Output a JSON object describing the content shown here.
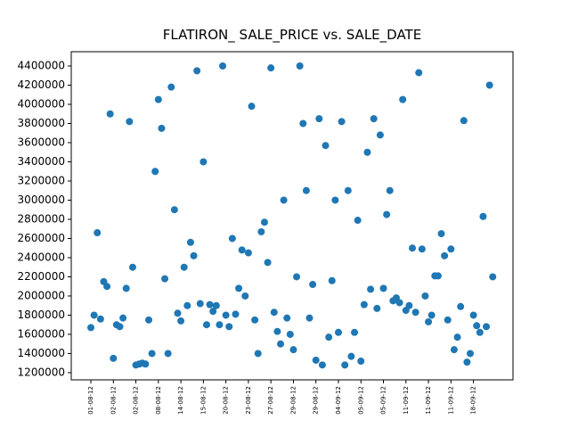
{
  "chart_data": {
    "type": "scatter",
    "title": "FLATIRON_ SALE_PRICE vs. SALE_DATE",
    "color": "#1f77b4",
    "x": [
      0,
      1,
      2,
      3,
      4,
      5,
      6,
      7,
      8,
      9,
      10,
      11,
      12,
      13,
      14,
      15,
      16,
      17,
      18,
      19,
      20,
      21,
      22,
      23,
      24,
      25,
      26,
      27,
      28,
      29,
      30,
      31,
      32,
      33,
      34,
      35,
      36,
      37,
      38,
      39,
      40,
      41,
      42,
      43,
      44,
      45,
      46,
      47,
      48,
      49,
      50,
      51,
      52,
      53,
      54,
      55,
      56,
      57,
      58,
      59,
      60,
      61,
      62,
      63,
      64,
      65,
      66,
      67,
      68,
      69,
      70,
      71,
      72,
      73,
      74,
      75,
      76,
      77,
      78,
      79,
      80,
      81,
      82,
      83,
      84,
      85,
      86,
      87,
      88,
      89,
      90,
      91,
      92,
      93,
      94,
      95,
      96,
      97,
      98,
      99,
      100,
      101,
      102,
      103,
      104,
      105,
      106,
      107,
      108,
      109,
      110,
      111,
      112,
      113,
      114,
      115,
      116,
      117,
      118,
      119,
      120,
      121,
      122,
      123,
      124,
      125
    ],
    "values": [
      1670000,
      1800000,
      2660000,
      1760000,
      2150000,
      2100000,
      3900000,
      1350000,
      1700000,
      1680000,
      1770000,
      2080000,
      3820000,
      2300000,
      1280000,
      1290000,
      1300000,
      1290000,
      1750000,
      1400000,
      3300000,
      4050000,
      3750000,
      2180000,
      1400000,
      4180000,
      2900000,
      1820000,
      1740000,
      2300000,
      1900000,
      2560000,
      2420000,
      4350000,
      1920000,
      3400000,
      1700000,
      1910000,
      1840000,
      1900000,
      1700000,
      4400000,
      1800000,
      1680000,
      2600000,
      1810000,
      2080000,
      2480000,
      2000000,
      2450000,
      3980000,
      1750000,
      1400000,
      2670000,
      2770000,
      2350000,
      4380000,
      1830000,
      1630000,
      1500000,
      3000000,
      1770000,
      1600000,
      1440000,
      2200000,
      4400000,
      3800000,
      3100000,
      1770000,
      2120000,
      1330000,
      3850000,
      1280000,
      3570000,
      1570000,
      2160000,
      3000000,
      1620000,
      3820000,
      1280000,
      3100000,
      1370000,
      1620000,
      2790000,
      1320000,
      1910000,
      3500000,
      2070000,
      3850000,
      1870000,
      3680000,
      2080000,
      2850000,
      3100000,
      1950000,
      1980000,
      1930000,
      4050000,
      1850000,
      1900000,
      2500000,
      1830000,
      4330000,
      2490000,
      2000000,
      1730000,
      1800000,
      2210000,
      2210000,
      2650000,
      2420000,
      1750000,
      2490000,
      1440000,
      1570000,
      1890000,
      3830000,
      1310000,
      1400000,
      1800000,
      1690000,
      1620000,
      2830000,
      1680000,
      4200000,
      2200000
    ],
    "xlim": [
      -6.1,
      131.3
    ],
    "xticks": [
      {
        "value": 0,
        "label": "01-08-12"
      },
      {
        "value": 7,
        "label": "02-08-12"
      },
      {
        "value": 14,
        "label": "02-08-12"
      },
      {
        "value": 21,
        "label": "08-08-12"
      },
      {
        "value": 28,
        "label": "14-08-12"
      },
      {
        "value": 35,
        "label": "15-08-12"
      },
      {
        "value": 42,
        "label": "20-08-12"
      },
      {
        "value": 49,
        "label": "23-08-12"
      },
      {
        "value": 56,
        "label": "27-08-12"
      },
      {
        "value": 63,
        "label": "29-08-12"
      },
      {
        "value": 70,
        "label": "29-08-12"
      },
      {
        "value": 77,
        "label": "04-09-12"
      },
      {
        "value": 84,
        "label": "05-09-12"
      },
      {
        "value": 91,
        "label": "05-09-12"
      },
      {
        "value": 98,
        "label": "11-09-12"
      },
      {
        "value": 105,
        "label": "11-09-12"
      },
      {
        "value": 112,
        "label": "11-09-12"
      },
      {
        "value": 119,
        "label": "18-09-12"
      }
    ],
    "ylim": [
      1125000,
      4549000
    ],
    "yticks": [
      1200000,
      1400000,
      1600000,
      1800000,
      2000000,
      2200000,
      2400000,
      2600000,
      2800000,
      3000000,
      3200000,
      3400000,
      3600000,
      3800000,
      4000000,
      4200000,
      4400000
    ],
    "grid": false
  }
}
